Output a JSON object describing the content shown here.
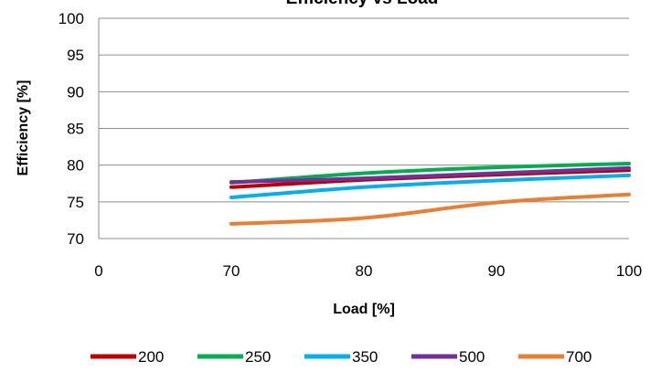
{
  "chart_data": {
    "type": "line",
    "title": "Efficiency vs Load",
    "xlabel": "Load [%]",
    "ylabel": "Efficiency [%]",
    "categories": [
      "0",
      "70",
      "80",
      "90",
      "100"
    ],
    "ylim": [
      70,
      100
    ],
    "yticks": [
      70,
      75,
      80,
      85,
      90,
      95,
      100
    ],
    "grid": true,
    "legend_position": "bottom",
    "series": [
      {
        "name": "200",
        "color": "#C00000",
        "values": [
          null,
          77.0,
          78.0,
          78.7,
          79.3
        ]
      },
      {
        "name": "250",
        "color": "#00B050",
        "values": [
          null,
          77.6,
          78.9,
          79.7,
          80.2
        ]
      },
      {
        "name": "350",
        "color": "#00B0F0",
        "values": [
          null,
          75.6,
          77.0,
          77.9,
          78.6
        ]
      },
      {
        "name": "500",
        "color": "#7030A0",
        "values": [
          null,
          77.7,
          78.2,
          78.9,
          79.6
        ]
      },
      {
        "name": "700",
        "color": "#ED7D31",
        "values": [
          null,
          72.0,
          72.8,
          74.9,
          76.0
        ]
      }
    ]
  }
}
